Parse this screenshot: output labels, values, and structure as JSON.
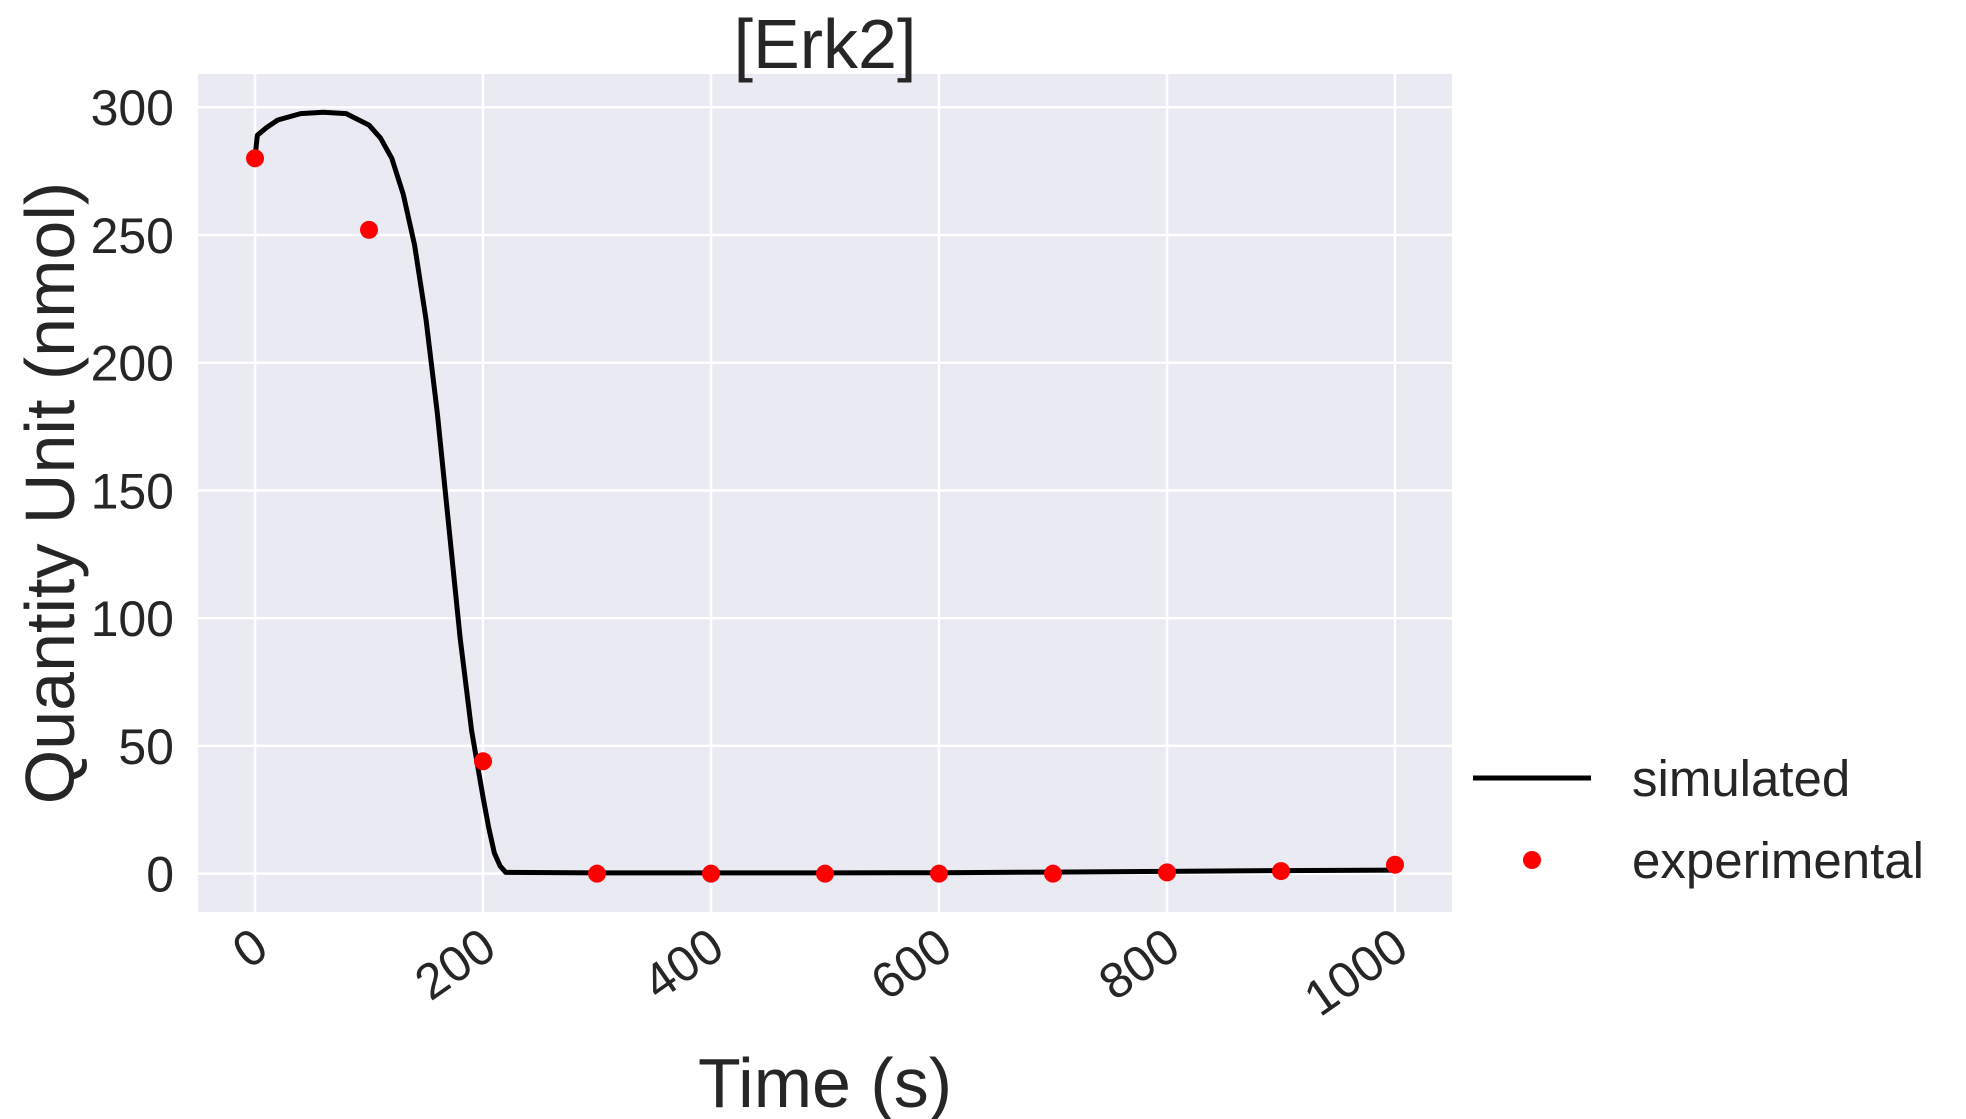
{
  "chart_data": {
    "type": "line",
    "title": "[Erk2]",
    "xlabel": "Time (s)",
    "ylabel": "Quantity Unit (nmol)",
    "xlim": [
      -50,
      1050
    ],
    "ylim": [
      -15,
      313
    ],
    "x_ticks": [
      0,
      200,
      400,
      600,
      800,
      1000
    ],
    "y_ticks": [
      0,
      50,
      100,
      150,
      200,
      250,
      300
    ],
    "grid": true,
    "background_color": "#eaeaf2",
    "grid_color": "#ffffff",
    "legend_position": "right",
    "series": [
      {
        "name": "simulated",
        "kind": "line",
        "color": "#000000",
        "x": [
          0,
          2,
          10,
          20,
          40,
          60,
          80,
          100,
          110,
          120,
          130,
          140,
          150,
          160,
          170,
          180,
          190,
          200,
          205,
          210,
          215,
          220,
          300,
          400,
          500,
          600,
          700,
          800,
          900,
          1000
        ],
        "y": [
          280,
          289,
          292,
          295,
          297.5,
          298,
          297.5,
          293,
          288,
          280,
          266,
          246,
          217,
          180,
          136,
          92,
          56,
          30,
          18,
          8,
          3,
          0.5,
          0.3,
          0.3,
          0.3,
          0.4,
          0.6,
          0.9,
          1.2,
          1.4
        ]
      },
      {
        "name": "experimental",
        "kind": "scatter",
        "color": "#ff0000",
        "x": [
          0,
          100,
          200,
          300,
          400,
          500,
          600,
          700,
          800,
          900,
          1000
        ],
        "y": [
          280,
          252,
          44,
          0,
          0,
          0,
          0,
          0,
          0.5,
          1,
          3.5
        ]
      }
    ]
  }
}
